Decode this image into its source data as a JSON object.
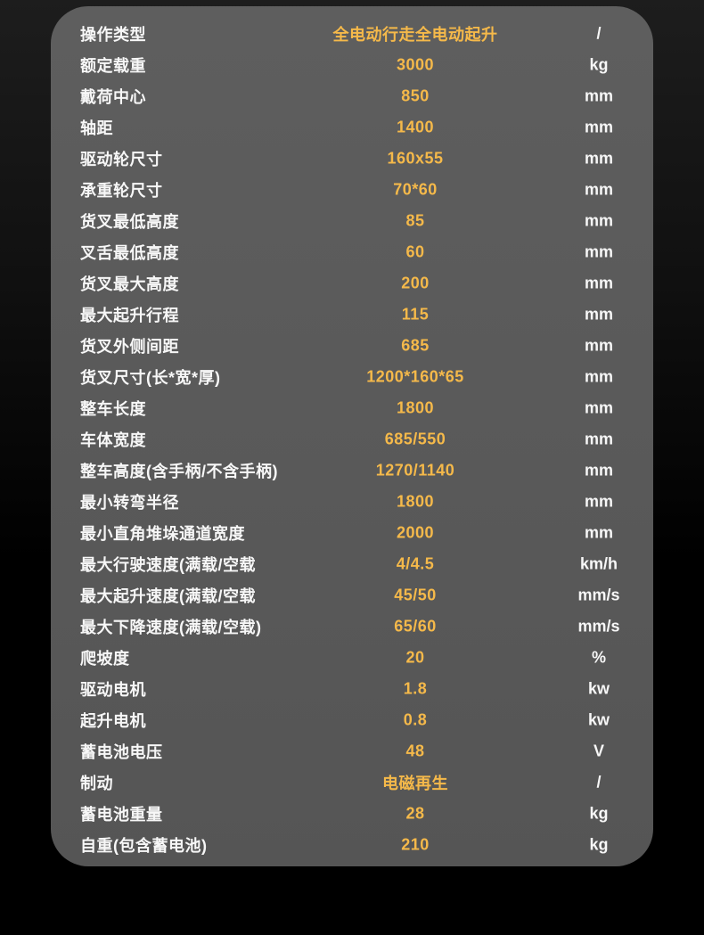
{
  "colors": {
    "background_top": "#1d1d1d",
    "background_bottom": "#000000",
    "card_background": "#595959",
    "label_text": "#f7f7f7",
    "value_text": "#f5b94a",
    "unit_text": "#f7f7f7"
  },
  "spec_table": {
    "rows": [
      {
        "label": "操作类型",
        "value": "全电动行走全电动起升",
        "unit": "/"
      },
      {
        "label": "额定载重",
        "value": "3000",
        "unit": "kg"
      },
      {
        "label": "戴荷中心",
        "value": "850",
        "unit": "mm"
      },
      {
        "label": "轴距",
        "value": "1400",
        "unit": "mm"
      },
      {
        "label": "驱动轮尺寸",
        "value": "160x55",
        "unit": "mm"
      },
      {
        "label": "承重轮尺寸",
        "value": "70*60",
        "unit": "mm"
      },
      {
        "label": "货叉最低高度",
        "value": "85",
        "unit": "mm"
      },
      {
        "label": "叉舌最低高度",
        "value": "60",
        "unit": "mm"
      },
      {
        "label": "货叉最大高度",
        "value": "200",
        "unit": "mm"
      },
      {
        "label": "最大起升行程",
        "value": "115",
        "unit": "mm"
      },
      {
        "label": "货叉外侧间距",
        "value": "685",
        "unit": "mm"
      },
      {
        "label": "货叉尺寸(长*宽*厚)",
        "value": "1200*160*65",
        "unit": "mm"
      },
      {
        "label": "整车长度",
        "value": "1800",
        "unit": "mm"
      },
      {
        "label": "车体宽度",
        "value": "685/550",
        "unit": "mm"
      },
      {
        "label": "整车高度(含手柄/不含手柄)",
        "value": "1270/1140",
        "unit": "mm"
      },
      {
        "label": "最小转弯半径",
        "value": "1800",
        "unit": "mm"
      },
      {
        "label": "最小直角堆垛通道宽度",
        "value": "2000",
        "unit": "mm"
      },
      {
        "label": "最大行驶速度(满载/空载",
        "value": "4/4.5",
        "unit": "km/h"
      },
      {
        "label": "最大起升速度(满载/空载",
        "value": "45/50",
        "unit": "mm/s"
      },
      {
        "label": "最大下降速度(满载/空载)",
        "value": "65/60",
        "unit": "mm/s"
      },
      {
        "label": "爬坡度",
        "value": "20",
        "unit": "%"
      },
      {
        "label": "驱动电机",
        "value": "1.8",
        "unit": "kw"
      },
      {
        "label": "起升电机",
        "value": "0.8",
        "unit": "kw"
      },
      {
        "label": "蓄电池电压",
        "value": "48",
        "unit": "V"
      },
      {
        "label": "制动",
        "value": "电磁再生",
        "unit": "/"
      },
      {
        "label": "蓄电池重量",
        "value": "28",
        "unit": "kg"
      },
      {
        "label": "自重(包含蓄电池)",
        "value": "210",
        "unit": "kg"
      }
    ]
  }
}
